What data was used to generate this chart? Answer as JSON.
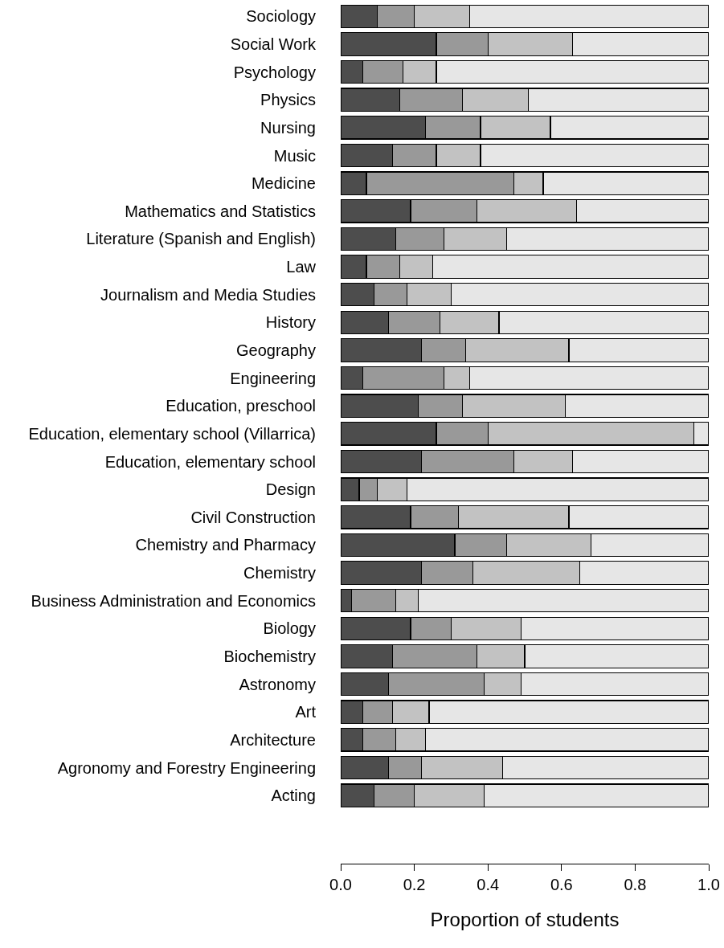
{
  "chart_data": {
    "type": "bar",
    "orientation": "horizontal",
    "stacked": true,
    "xlabel": "Proportion of students",
    "categories": [
      "Sociology",
      "Social Work",
      "Psychology",
      "Physics",
      "Nursing",
      "Music",
      "Medicine",
      "Mathematics and Statistics",
      "Literature (Spanish and English)",
      "Law",
      "Journalism and Media Studies",
      "History",
      "Geography",
      "Engineering",
      "Education, preschool",
      "Education, elementary school (Villarrica)",
      "Education, elementary school",
      "Design",
      "Civil Construction",
      "Chemistry and Pharmacy",
      "Chemistry",
      "Business Administration and Economics",
      "Biology",
      "Biochemistry",
      "Astronomy",
      "Art",
      "Architecture",
      "Agronomy and Forestry Engineering",
      "Acting"
    ],
    "series": [
      {
        "color": "#4d4d4d",
        "values": [
          0.1,
          0.26,
          0.06,
          0.16,
          0.23,
          0.14,
          0.07,
          0.19,
          0.15,
          0.07,
          0.09,
          0.13,
          0.22,
          0.06,
          0.21,
          0.26,
          0.22,
          0.05,
          0.19,
          0.31,
          0.22,
          0.03,
          0.19,
          0.14,
          0.13,
          0.06,
          0.06,
          0.13,
          0.09
        ]
      },
      {
        "color": "#999999",
        "values": [
          0.1,
          0.14,
          0.11,
          0.17,
          0.15,
          0.12,
          0.4,
          0.18,
          0.13,
          0.09,
          0.09,
          0.14,
          0.12,
          0.22,
          0.12,
          0.14,
          0.25,
          0.05,
          0.13,
          0.14,
          0.14,
          0.12,
          0.11,
          0.23,
          0.26,
          0.08,
          0.09,
          0.09,
          0.11
        ]
      },
      {
        "color": "#c2c2c2",
        "values": [
          0.15,
          0.23,
          0.09,
          0.18,
          0.19,
          0.12,
          0.08,
          0.27,
          0.17,
          0.09,
          0.12,
          0.16,
          0.28,
          0.07,
          0.28,
          0.56,
          0.16,
          0.08,
          0.3,
          0.23,
          0.29,
          0.06,
          0.19,
          0.13,
          0.1,
          0.1,
          0.08,
          0.22,
          0.19
        ]
      },
      {
        "color": "#e6e6e6",
        "values": [
          0.65,
          0.37,
          0.74,
          0.49,
          0.43,
          0.62,
          0.45,
          0.36,
          0.55,
          0.75,
          0.7,
          0.57,
          0.38,
          0.65,
          0.39,
          0.04,
          0.37,
          0.82,
          0.38,
          0.32,
          0.35,
          0.79,
          0.51,
          0.5,
          0.51,
          0.76,
          0.77,
          0.56,
          0.61
        ]
      }
    ],
    "xlim": [
      0,
      1
    ],
    "xticks": [
      {
        "value": 0,
        "label": "0.0"
      },
      {
        "value": 0.2,
        "label": "0.2"
      },
      {
        "value": 0.4,
        "label": "0.4"
      },
      {
        "value": 0.6,
        "label": "0.6"
      },
      {
        "value": 0.8,
        "label": "0.8"
      },
      {
        "value": 1,
        "label": "1.0"
      }
    ],
    "line_style": "solid"
  }
}
